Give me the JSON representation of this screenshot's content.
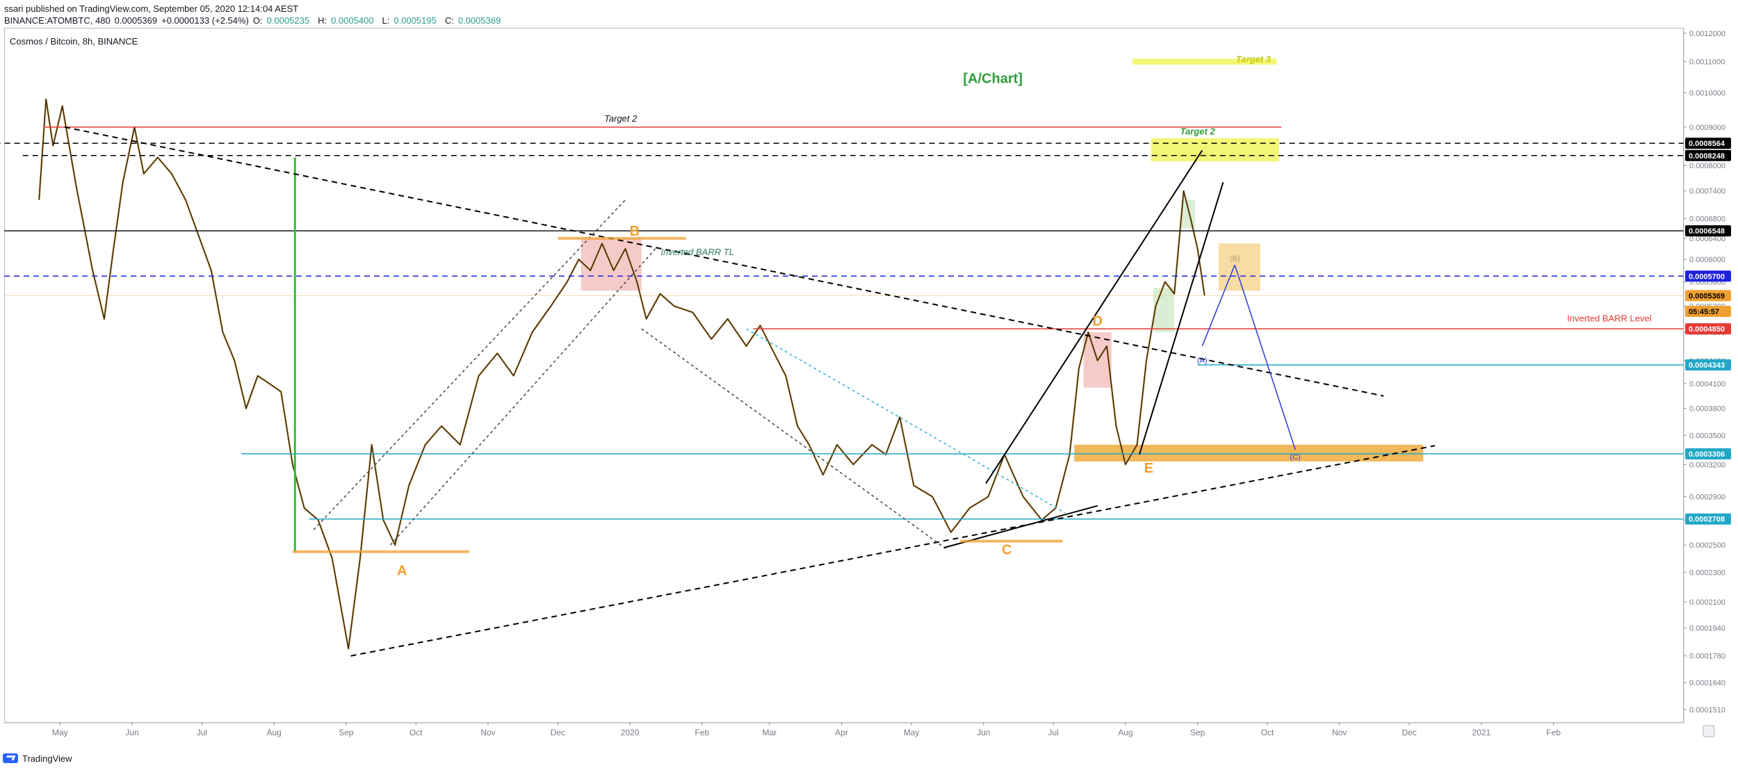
{
  "header": {
    "published": "ssari published on TradingView.com, September 05, 2020 12:14:04 AEST",
    "symbol": "BINANCE:ATOMBTC, 480",
    "price": "0.0005369",
    "change": "+0.0000133 (+2.54%)",
    "open_label": "O:",
    "open": "0.0005235",
    "high_label": "H:",
    "high": "0.0005400",
    "low_label": "L:",
    "low": "0.0005195",
    "close_label": "C:",
    "close": "0.0005369"
  },
  "footer": {
    "brand": "TradingView"
  },
  "colors": {
    "background": "#ffffff",
    "candle": "#3a2a12",
    "candle_wick": "#d99a1f",
    "target_yellow": "#f2f566",
    "orange": "#f0a030",
    "red_line": "#e53935",
    "blue_dashed": "#1e22e0",
    "cyan": "#22a7c7",
    "green": "#2ec22e"
  },
  "chart_data": {
    "type": "line",
    "title": "Cosmos / Bitcoin, 8h, BINANCE",
    "scale": "log",
    "ylim": [
      0.000145,
      0.00122
    ],
    "xlim": [
      "2019-04-07",
      "2021-03-29"
    ],
    "x_ticks": [
      "May",
      "Jun",
      "Jul",
      "Aug",
      "Sep",
      "Oct",
      "Nov",
      "Dec",
      "2020",
      "Feb",
      "Mar",
      "Apr",
      "May",
      "Jun",
      "Jul",
      "Aug",
      "Sep",
      "Oct",
      "Nov",
      "Dec",
      "2021",
      "Feb"
    ],
    "x_tick_dates": [
      "2019-05-01",
      "2019-06-01",
      "2019-07-01",
      "2019-08-01",
      "2019-09-01",
      "2019-10-01",
      "2019-11-01",
      "2019-12-01",
      "2020-01-01",
      "2020-02-01",
      "2020-03-01",
      "2020-04-01",
      "2020-05-01",
      "2020-06-01",
      "2020-07-01",
      "2020-08-01",
      "2020-09-01",
      "2020-10-01",
      "2020-11-01",
      "2020-12-01",
      "2021-01-01",
      "2021-02-01"
    ],
    "y_ticks": [
      0.0012,
      0.0011,
      0.001,
      0.0009,
      0.0008,
      0.00074,
      0.00068,
      0.00064,
      0.0006,
      0.00056,
      0.00052,
      0.00048,
      0.00044,
      0.00041,
      0.00038,
      0.00035,
      0.00032,
      0.00029,
      0.00027,
      0.00025,
      0.00023,
      0.00021,
      0.000194,
      0.000178,
      0.000164,
      0.000151
    ],
    "y_tick_labels": [
      "0.0012000",
      "0.0011000",
      "0.0010000",
      "0.0009000",
      "0.0008000",
      "0.0007400",
      "0.0006800",
      "0.0006400",
      "0.0006000",
      "0.0005600",
      "0.0005200",
      "0.0004800",
      "0.0004400",
      "0.0004100",
      "0.0003800",
      "0.0003500",
      "0.0003200",
      "0.0002900",
      "0.0002700",
      "0.0002500",
      "0.0002300",
      "0.0002100",
      "0.0001940",
      "0.0001780",
      "0.0001640",
      "0.0001510"
    ],
    "price_tags": [
      {
        "value": 0.0008564,
        "label": "0.0008564",
        "bg": "#000000",
        "fg": "#ffffff"
      },
      {
        "value": 0.0008248,
        "label": "0.0008248",
        "bg": "#000000",
        "fg": "#ffffff"
      },
      {
        "value": 0.0006548,
        "label": "0.0006548",
        "bg": "#000000",
        "fg": "#ffffff"
      },
      {
        "value": 0.00057,
        "label": "0.0005700",
        "bg": "#1e22e0",
        "fg": "#ffffff"
      },
      {
        "value": 0.0005369,
        "label": "0.0005369",
        "bg": "#f0a030",
        "fg": "#000000"
      },
      {
        "value": 0.0005117,
        "label": "05:45:57",
        "bg": "#f0a030",
        "fg": "#000000"
      },
      {
        "value": 0.000485,
        "label": "0.0004850",
        "bg": "#e53935",
        "fg": "#ffffff"
      },
      {
        "value": 0.0004343,
        "label": "0.0004343",
        "bg": "#22a7c7",
        "fg": "#ffffff"
      },
      {
        "value": 0.0003306,
        "label": "0.0003306",
        "bg": "#22a7c7",
        "fg": "#ffffff"
      },
      {
        "value": 0.0002708,
        "label": "0.0002708",
        "bg": "#22a7c7",
        "fg": "#ffffff"
      }
    ],
    "price_path": [
      [
        "2019-04-22",
        0.00072
      ],
      [
        "2019-04-25",
        0.00098
      ],
      [
        "2019-04-28",
        0.00085
      ],
      [
        "2019-05-02",
        0.00096
      ],
      [
        "2019-05-08",
        0.00075
      ],
      [
        "2019-05-15",
        0.00058
      ],
      [
        "2019-05-20",
        0.0005
      ],
      [
        "2019-05-24",
        0.00062
      ],
      [
        "2019-05-28",
        0.00076
      ],
      [
        "2019-06-02",
        0.0009
      ],
      [
        "2019-06-06",
        0.00078
      ],
      [
        "2019-06-12",
        0.00082
      ],
      [
        "2019-06-18",
        0.00078
      ],
      [
        "2019-06-24",
        0.00072
      ],
      [
        "2019-06-30",
        0.00064
      ],
      [
        "2019-07-05",
        0.00058
      ],
      [
        "2019-07-10",
        0.00048
      ],
      [
        "2019-07-15",
        0.00044
      ],
      [
        "2019-07-20",
        0.00038
      ],
      [
        "2019-07-25",
        0.00042
      ],
      [
        "2019-07-30",
        0.00041
      ],
      [
        "2019-08-04",
        0.0004
      ],
      [
        "2019-08-09",
        0.00032
      ],
      [
        "2019-08-14",
        0.00028
      ],
      [
        "2019-08-20",
        0.00027
      ],
      [
        "2019-08-26",
        0.00024
      ],
      [
        "2019-09-02",
        0.000182
      ],
      [
        "2019-09-07",
        0.00024
      ],
      [
        "2019-09-12",
        0.00034
      ],
      [
        "2019-09-17",
        0.00027
      ],
      [
        "2019-09-22",
        0.00025
      ],
      [
        "2019-09-28",
        0.0003
      ],
      [
        "2019-10-05",
        0.00034
      ],
      [
        "2019-10-12",
        0.00036
      ],
      [
        "2019-10-20",
        0.00034
      ],
      [
        "2019-10-28",
        0.00042
      ],
      [
        "2019-11-05",
        0.00045
      ],
      [
        "2019-11-12",
        0.00042
      ],
      [
        "2019-11-20",
        0.00048
      ],
      [
        "2019-11-28",
        0.00052
      ],
      [
        "2019-12-05",
        0.00056
      ],
      [
        "2019-12-10",
        0.0006
      ],
      [
        "2019-12-15",
        0.00058
      ],
      [
        "2019-12-20",
        0.00063
      ],
      [
        "2019-12-25",
        0.00058
      ],
      [
        "2019-12-30",
        0.00062
      ],
      [
        "2020-01-04",
        0.00056
      ],
      [
        "2020-01-08",
        0.0005
      ],
      [
        "2020-01-14",
        0.00054
      ],
      [
        "2020-01-20",
        0.00052
      ],
      [
        "2020-01-28",
        0.00051
      ],
      [
        "2020-02-05",
        0.00047
      ],
      [
        "2020-02-12",
        0.0005
      ],
      [
        "2020-02-20",
        0.00046
      ],
      [
        "2020-02-26",
        0.00049
      ],
      [
        "2020-03-03",
        0.00045
      ],
      [
        "2020-03-08",
        0.00042
      ],
      [
        "2020-03-13",
        0.00036
      ],
      [
        "2020-03-18",
        0.00034
      ],
      [
        "2020-03-24",
        0.00031
      ],
      [
        "2020-03-30",
        0.00034
      ],
      [
        "2020-04-06",
        0.00032
      ],
      [
        "2020-04-14",
        0.00034
      ],
      [
        "2020-04-20",
        0.00033
      ],
      [
        "2020-04-26",
        0.00037
      ],
      [
        "2020-05-02",
        0.0003
      ],
      [
        "2020-05-10",
        0.00029
      ],
      [
        "2020-05-18",
        0.00026
      ],
      [
        "2020-05-26",
        0.00028
      ],
      [
        "2020-06-03",
        0.00029
      ],
      [
        "2020-06-10",
        0.00033
      ],
      [
        "2020-06-18",
        0.00029
      ],
      [
        "2020-06-26",
        0.00027
      ],
      [
        "2020-07-02",
        0.00028
      ],
      [
        "2020-07-08",
        0.00033
      ],
      [
        "2020-07-12",
        0.00043
      ],
      [
        "2020-07-16",
        0.00048
      ],
      [
        "2020-07-20",
        0.00044
      ],
      [
        "2020-07-24",
        0.00046
      ],
      [
        "2020-07-28",
        0.00036
      ],
      [
        "2020-08-01",
        0.00032
      ],
      [
        "2020-08-06",
        0.00034
      ],
      [
        "2020-08-10",
        0.00044
      ],
      [
        "2020-08-14",
        0.00052
      ],
      [
        "2020-08-18",
        0.00056
      ],
      [
        "2020-08-22",
        0.00054
      ],
      [
        "2020-08-26",
        0.00074
      ],
      [
        "2020-08-29",
        0.00068
      ],
      [
        "2020-09-01",
        0.00062
      ],
      [
        "2020-09-04",
        0.000537
      ]
    ],
    "lines": [
      {
        "kind": "target2",
        "label": "Target 2",
        "from": [
          "2019-04-24",
          0.0009
        ],
        "to": [
          "2020-10-07",
          0.0009
        ],
        "color": "#e53935",
        "dash": false
      },
      {
        "kind": "black_dashed_h",
        "from": [
          "2019-04-03",
          0.0008564
        ],
        "to": [
          "2021-03-29",
          0.0008564
        ],
        "color": "#000000",
        "dash": true
      },
      {
        "kind": "black_dashed_h",
        "from": [
          "2019-04-15",
          0.0008248
        ],
        "to": [
          "2021-03-29",
          0.0008248
        ],
        "color": "#000000",
        "dash": true
      },
      {
        "kind": "black_h",
        "from": [
          "2019-04-07",
          0.0006548
        ],
        "to": [
          "2021-03-29",
          0.0006548
        ],
        "color": "#131722",
        "dash": false
      },
      {
        "kind": "blue_dashed_h",
        "from": [
          "2019-04-07",
          0.00057
        ],
        "to": [
          "2021-03-29",
          0.00057
        ],
        "color": "#1e22e0",
        "dash": true
      },
      {
        "kind": "barr_level",
        "from": [
          "2020-02-23",
          0.000485
        ],
        "to": [
          "2021-03-29",
          0.000485
        ],
        "color": "#e53935",
        "dash": false
      },
      {
        "kind": "cyan_h",
        "from": [
          "2020-09-01",
          0.0004343
        ],
        "to": [
          "2021-03-29",
          0.0004343
        ],
        "color": "#22a7c7",
        "dash": false
      },
      {
        "kind": "cyan_h",
        "from": [
          "2019-07-18",
          0.0003306
        ],
        "to": [
          "2021-03-29",
          0.0003306
        ],
        "color": "#22a7c7",
        "dash": false
      },
      {
        "kind": "cyan_h",
        "from": [
          "2019-08-16",
          0.0002708
        ],
        "to": [
          "2021-03-29",
          0.0002708
        ],
        "color": "#22a7c7",
        "dash": false
      },
      {
        "kind": "green_v",
        "from": [
          "2019-08-10",
          0.000245
        ],
        "to": [
          "2019-08-10",
          0.00082
        ],
        "color": "#2ec22e",
        "dash": false
      },
      {
        "kind": "barr_tl",
        "from": [
          "2019-05-03",
          0.0009
        ],
        "to": [
          "2020-11-20",
          0.0003948
        ],
        "color": "#000000",
        "dash": true
      },
      {
        "kind": "lower_tl",
        "from": [
          "2019-09-03",
          0.000178
        ],
        "to": [
          "2020-12-12",
          0.000339
        ],
        "color": "#000000",
        "dash": true
      },
      {
        "kind": "channel",
        "from": [
          "2019-08-18",
          0.000262
        ],
        "to": [
          "2019-12-30",
          0.00072
        ],
        "color": "#444444",
        "dash": true
      },
      {
        "kind": "channel",
        "from": [
          "2019-09-20",
          0.00025
        ],
        "to": [
          "2020-01-12",
          0.00062
        ],
        "color": "#444444",
        "dash": true
      },
      {
        "kind": "channel",
        "from": [
          "2020-01-06",
          0.000485
        ],
        "to": [
          "2020-05-16",
          0.000247
        ],
        "color": "#444444",
        "dash": true
      },
      {
        "kind": "channel_light",
        "from": [
          "2020-02-20",
          0.000485
        ],
        "to": [
          "2020-07-06",
          0.000276
        ],
        "color": "#2ab0d5",
        "dash": true
      },
      {
        "kind": "wedge",
        "from": [
          "2020-05-15",
          0.000248
        ],
        "to": [
          "2020-07-20",
          0.000282
        ],
        "color": "#000000",
        "dash": false
      },
      {
        "kind": "wedge_solid",
        "from": [
          "2020-06-02",
          0.000302
        ],
        "to": [
          "2020-09-03",
          0.000838
        ],
        "color": "#000000",
        "dash": false
      },
      {
        "kind": "wedge_solid",
        "from": [
          "2020-08-07",
          0.00033
        ],
        "to": [
          "2020-09-12",
          0.00076
        ],
        "color": "#000000",
        "dash": false
      },
      {
        "kind": "proj",
        "from": [
          "2020-09-03",
          0.00046
        ],
        "to": [
          "2020-09-17",
          0.00059
        ],
        "color": "#2b3bd8",
        "dash": false
      },
      {
        "kind": "proj",
        "from": [
          "2020-09-17",
          0.00059
        ],
        "to": [
          "2020-10-13",
          0.000335
        ],
        "color": "#2b3bd8",
        "dash": false
      },
      {
        "kind": "base_a",
        "from": [
          "2019-08-09",
          0.000245
        ],
        "to": [
          "2019-10-24",
          0.000245
        ],
        "color": "#f0a030",
        "dash": false
      },
      {
        "kind": "base_b",
        "from": [
          "2019-12-01",
          0.00064
        ],
        "to": [
          "2020-01-25",
          0.00064
        ],
        "color": "#f0a030",
        "dash": false
      },
      {
        "kind": "base_c",
        "from": [
          "2020-05-22",
          0.000253
        ],
        "to": [
          "2020-07-05",
          0.000253
        ],
        "color": "#f0a030",
        "dash": false
      }
    ],
    "zones": [
      {
        "kind": "target3_box",
        "x0": "2020-08-04",
        "x1": "2020-10-05",
        "y0": 0.00109,
        "y1": 0.00111,
        "color": "#f2f566"
      },
      {
        "kind": "target2_box",
        "x0": "2020-08-12",
        "x1": "2020-10-06",
        "y0": 0.00081,
        "y1": 0.00087,
        "color": "#f2f566"
      },
      {
        "kind": "b_zone",
        "x0": "2020-09-10",
        "x1": "2020-09-28",
        "y0": 0.000545,
        "y1": 0.00063,
        "color": "#f7d89a"
      },
      {
        "kind": "e_zone",
        "x0": "2020-07-10",
        "x1": "2020-12-07",
        "y0": 0.000323,
        "y1": 0.00034,
        "color": "#f0b04a"
      },
      {
        "kind": "pink_b",
        "x0": "2019-12-11",
        "x1": "2020-01-06",
        "y0": 0.000545,
        "y1": 0.00064,
        "color": "#f4b8b8"
      },
      {
        "kind": "pink_d",
        "x0": "2020-07-14",
        "x1": "2020-07-26",
        "y0": 0.000405,
        "y1": 0.00048,
        "color": "#f4b8b8"
      },
      {
        "kind": "green_soft",
        "x0": "2020-08-13",
        "x1": "2020-08-22",
        "y0": 0.00048,
        "y1": 0.00055,
        "color": "#cde8c8"
      },
      {
        "kind": "green_soft",
        "x0": "2020-08-25",
        "x1": "2020-08-31",
        "y0": 0.00066,
        "y1": 0.00072,
        "color": "#cde8c8"
      }
    ],
    "annotations": [
      {
        "text": "[A/Chart]",
        "x": "2020-06-05",
        "y": 0.00103,
        "color": "#2e9e3e",
        "size": 20,
        "weight": "bold",
        "italic": false
      },
      {
        "text": "Target 3",
        "x": "2020-09-25",
        "y": 0.001098,
        "color": "#c7c912",
        "size": 13,
        "weight": "bold",
        "italic": true
      },
      {
        "text": "Target 2",
        "x": "2020-09-01",
        "y": 0.00088,
        "color": "#2e9e3e",
        "size": 13,
        "weight": "bold",
        "italic": true
      },
      {
        "text": "Target 2",
        "x": "2019-12-28",
        "y": 0.000915,
        "color": "#131722",
        "size": 13,
        "weight": "normal",
        "italic": true
      },
      {
        "text": "Inverted BARR TL",
        "x": "2020-01-30",
        "y": 0.000608,
        "color": "#2e7d5e",
        "size": 13,
        "weight": "normal",
        "italic": true
      },
      {
        "text": "Inverted BARR Level",
        "x": "2021-02-25",
        "y": 0.000496,
        "color": "#e53935",
        "size": 13,
        "weight": "normal",
        "italic": false
      },
      {
        "text": "A",
        "x": "2019-09-25",
        "y": 0.000228,
        "color": "#f0a030",
        "size": 20,
        "weight": "bold",
        "italic": false
      },
      {
        "text": "B",
        "x": "2020-01-03",
        "y": 0.000645,
        "color": "#f0a030",
        "size": 20,
        "weight": "bold",
        "italic": false
      },
      {
        "text": "C",
        "x": "2020-06-11",
        "y": 0.000243,
        "color": "#f0a030",
        "size": 20,
        "weight": "bold",
        "italic": false
      },
      {
        "text": "D",
        "x": "2020-07-20",
        "y": 0.00049,
        "color": "#f0a030",
        "size": 20,
        "weight": "bold",
        "italic": false
      },
      {
        "text": "E",
        "x": "2020-08-11",
        "y": 0.000312,
        "color": "#f0a030",
        "size": 20,
        "weight": "bold",
        "italic": false
      },
      {
        "text": "(A)",
        "x": "2020-09-03",
        "y": 0.000437,
        "color": "#2b3bd8",
        "size": 11,
        "weight": "normal",
        "italic": false
      },
      {
        "text": "(B)",
        "x": "2020-09-17",
        "y": 0.000597,
        "color": "#b49a6a",
        "size": 11,
        "weight": "normal",
        "italic": false
      },
      {
        "text": "(C)",
        "x": "2020-10-13",
        "y": 0.000325,
        "color": "#2b3bd8",
        "size": 11,
        "weight": "normal",
        "italic": false
      }
    ]
  }
}
